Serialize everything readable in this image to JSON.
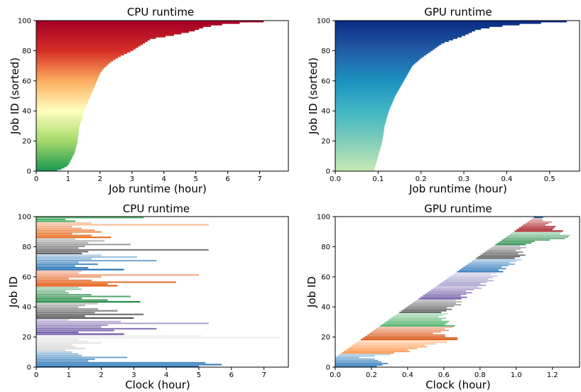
{
  "chart_data": [
    {
      "id": "cpu-sorted",
      "type": "bar",
      "orientation": "horizontal",
      "title": "CPU runtime",
      "xlabel": "Job runtime (hour)",
      "ylabel": "Job ID (sorted)",
      "xlim": [
        0,
        7.9
      ],
      "ylim": [
        0,
        100
      ],
      "xticks": [
        "0",
        "1",
        "2",
        "3",
        "4",
        "5",
        "6",
        "7"
      ],
      "yticks": [
        "0",
        "20",
        "40",
        "60",
        "80",
        "100"
      ],
      "colormap": "RdYlGn_r",
      "color_range": [
        "#1a9850",
        "#a6d96a",
        "#ffffbf",
        "#fdae61",
        "#d73027",
        "#a50026"
      ],
      "curve": [
        [
          0,
          0.6
        ],
        [
          2,
          0.85
        ],
        [
          4,
          1.0
        ],
        [
          8,
          1.1
        ],
        [
          12,
          1.2
        ],
        [
          20,
          1.3
        ],
        [
          30,
          1.35
        ],
        [
          35,
          1.45
        ],
        [
          40,
          1.5
        ],
        [
          45,
          1.6
        ],
        [
          50,
          1.7
        ],
        [
          55,
          1.8
        ],
        [
          60,
          1.9
        ],
        [
          65,
          2.0
        ],
        [
          68,
          2.1
        ],
        [
          72,
          2.3
        ],
        [
          76,
          2.6
        ],
        [
          80,
          3.0
        ],
        [
          84,
          3.3
        ],
        [
          88,
          3.6
        ],
        [
          90,
          4.2
        ],
        [
          93,
          4.9
        ],
        [
          96,
          5.3
        ],
        [
          98,
          6.0
        ],
        [
          100,
          7.5
        ]
      ]
    },
    {
      "id": "gpu-sorted",
      "type": "bar",
      "orientation": "horizontal",
      "title": "GPU runtime",
      "xlabel": "Job runtime (hour)",
      "ylabel": "Job ID (sorted)",
      "xlim": [
        0,
        0.57
      ],
      "ylim": [
        0,
        100
      ],
      "xticks": [
        "0.0",
        "0.1",
        "0.2",
        "0.3",
        "0.4",
        "0.5"
      ],
      "yticks": [
        "0",
        "20",
        "40",
        "60",
        "80",
        "100"
      ],
      "colormap": "YlGnBu",
      "color_range": [
        "#c7e9b4",
        "#7fcdbb",
        "#41b6c4",
        "#1d91c0",
        "#225ea8",
        "#0c2c84"
      ],
      "curve": [
        [
          0,
          0.09
        ],
        [
          10,
          0.1
        ],
        [
          20,
          0.11
        ],
        [
          30,
          0.115
        ],
        [
          40,
          0.125
        ],
        [
          50,
          0.14
        ],
        [
          55,
          0.15
        ],
        [
          60,
          0.16
        ],
        [
          65,
          0.17
        ],
        [
          70,
          0.18
        ],
        [
          75,
          0.2
        ],
        [
          80,
          0.225
        ],
        [
          85,
          0.25
        ],
        [
          90,
          0.3
        ],
        [
          94,
          0.33
        ],
        [
          96,
          0.37
        ],
        [
          98,
          0.45
        ],
        [
          100,
          0.57
        ]
      ]
    },
    {
      "id": "cpu-clock",
      "type": "bar",
      "orientation": "horizontal",
      "title": "CPU runtime",
      "xlabel": "Clock (hour)",
      "ylabel": "Job ID",
      "xlim": [
        0,
        7.75
      ],
      "ylim": [
        0,
        100
      ],
      "xticks": [
        "0",
        "1",
        "2",
        "3",
        "4",
        "5",
        "6",
        "7"
      ],
      "yticks": [
        "0",
        "20",
        "40",
        "60",
        "80",
        "100"
      ],
      "group_size": 9,
      "group_colors": [
        "#2171b5",
        "#d9d9d9",
        "#6a51a3",
        "#525252",
        "#238b45",
        "#e6550d",
        "#2171b5",
        "#636363",
        "#ea6a1c",
        "#41ab5d",
        "#2171b5"
      ],
      "durations": [
        5.0,
        5.7,
        5.2,
        1.6,
        1.8,
        2.8,
        1.4,
        1.3,
        1.1,
        0.9,
        1.5,
        1.2,
        1.1,
        2.0,
        1.6,
        1.3,
        7.5,
        5.1,
        2.7,
        1.3,
        2.4,
        3.7,
        2.0,
        2.2,
        5.3,
        2.6,
        1.0,
        3.0,
        1.5,
        3.3,
        1.8,
        2.5,
        1.9,
        1.3,
        1.5,
        1.9,
        3.2,
        2.2,
        1.4,
        2.9,
        1.7,
        1.0,
        0.9,
        1.4,
        1.3,
        2.5,
        2.2,
        4.3,
        1.7,
        1.0,
        2.0,
        5.0,
        1.3,
        1.4,
        2.7,
        1.6,
        1.2,
        1.9,
        1.3,
        3.7,
        1.7,
        3.1,
        2.0,
        1.4,
        1.6,
        5.3,
        1.3,
        1.5,
        2.9,
        1.6,
        2.1,
        1.2,
        2.3,
        1.7,
        1.1,
        2.0,
        1.8,
        1.4,
        1.1,
        5.3,
        1.7,
        1.2,
        0.9,
        3.3
      ]
    },
    {
      "id": "gpu-clock",
      "type": "bar",
      "orientation": "horizontal",
      "title": "GPU runtime",
      "xlabel": "Clock (hour)",
      "ylabel": "Job ID",
      "xlim": [
        0,
        1.35
      ],
      "ylim": [
        0,
        100
      ],
      "xticks": [
        "0.0",
        "0.2",
        "0.4",
        "0.6",
        "0.8",
        "1.0",
        "1.2"
      ],
      "yticks": [
        "0",
        "20",
        "40",
        "60",
        "80",
        "100"
      ],
      "group_size": 9,
      "group_colors": [
        "#2171b5",
        "#fd8d3c",
        "#d94801",
        "#41ab5d",
        "#525252",
        "#6a51a3",
        "#9e9ac8",
        "#2171b5",
        "#525252",
        "#238b45",
        "#a50f15"
      ],
      "end_curve": [
        [
          0,
          0.26
        ],
        [
          3,
          0.28
        ],
        [
          6,
          0.15
        ],
        [
          10,
          0.4
        ],
        [
          14,
          0.52
        ],
        [
          18,
          0.67
        ],
        [
          22,
          0.57
        ],
        [
          26,
          0.65
        ],
        [
          30,
          0.6
        ],
        [
          34,
          0.6
        ],
        [
          38,
          0.62
        ],
        [
          42,
          0.68
        ],
        [
          46,
          0.71
        ],
        [
          50,
          0.74
        ],
        [
          54,
          0.82
        ],
        [
          58,
          0.87
        ],
        [
          62,
          0.88
        ],
        [
          66,
          0.95
        ],
        [
          70,
          1.0
        ],
        [
          74,
          1.02
        ],
        [
          78,
          1.03
        ],
        [
          82,
          1.06
        ],
        [
          86,
          1.3
        ],
        [
          90,
          1.24
        ],
        [
          94,
          1.18
        ],
        [
          97,
          1.16
        ],
        [
          99,
          1.1
        ]
      ]
    }
  ]
}
